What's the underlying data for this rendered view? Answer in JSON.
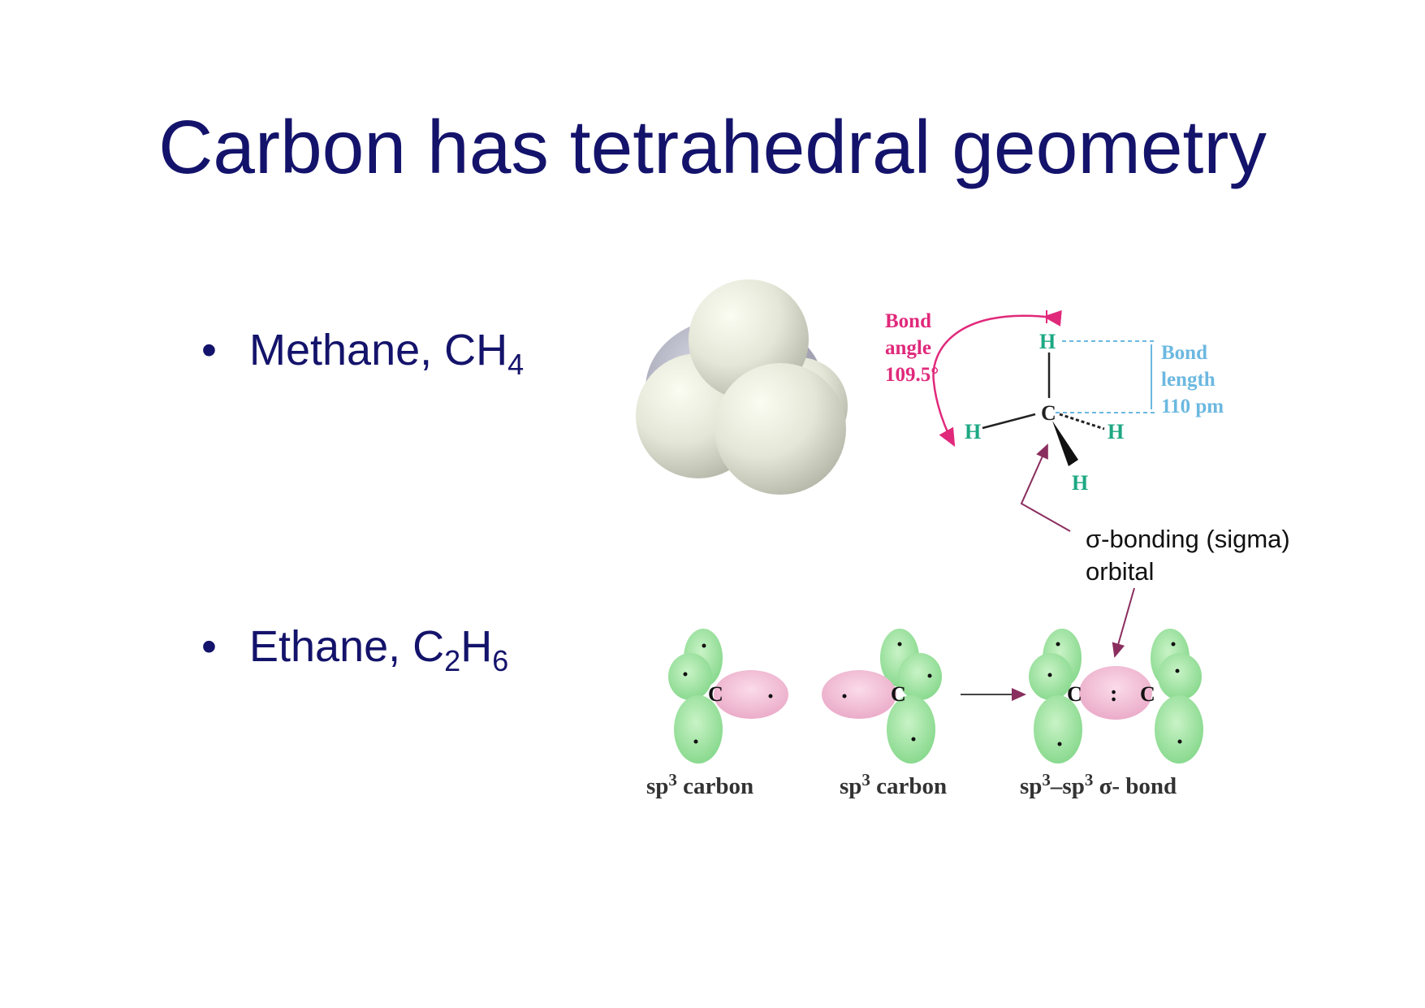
{
  "slide": {
    "title": "Carbon has tetrahedral geometry",
    "bullets": [
      {
        "marker": "•",
        "text": "Methane, CH",
        "sub": "4"
      },
      {
        "marker": "•",
        "text": "Ethane, C",
        "sub1": "2",
        "mid": "H",
        "sub2": "6"
      }
    ]
  },
  "methane_structure": {
    "bond_angle_label": [
      "Bond",
      "angle",
      "109.5°"
    ],
    "bond_length_label": [
      "Bond",
      "length",
      "110 pm"
    ],
    "carbon": "C",
    "hydrogen": "H",
    "sigma_callout": [
      "σ-bonding (sigma)",
      "orbital"
    ]
  },
  "ethane_orbitals": {
    "carbon": "C",
    "pair": ":",
    "captions": [
      "sp",
      "3",
      " carbon",
      "sp",
      "3",
      " carbon",
      "sp",
      "3",
      "–sp",
      "3",
      " σ- bond"
    ]
  },
  "colors": {
    "title": "#14136b",
    "angle_label": "#e0297b",
    "length_label": "#6bb8e0",
    "hydrogen": "#1ca883",
    "arrow": "#8a2e5f",
    "lobe_green": "#9be49b",
    "lobe_pink": "#f1b3cf"
  }
}
